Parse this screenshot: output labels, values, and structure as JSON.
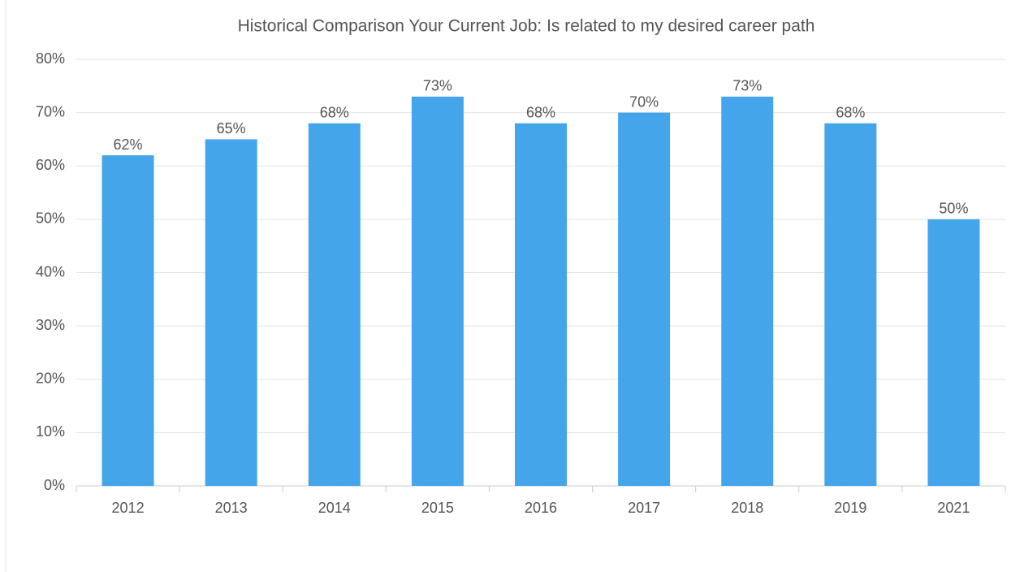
{
  "chart_data": {
    "type": "bar",
    "title": "Historical Comparison Your Current Job: Is related to my desired career path",
    "categories": [
      "2012",
      "2013",
      "2014",
      "2015",
      "2016",
      "2017",
      "2018",
      "2019",
      "2021"
    ],
    "values": [
      62,
      65,
      68,
      73,
      68,
      70,
      73,
      68,
      50
    ],
    "value_labels": [
      "62%",
      "65%",
      "68%",
      "73%",
      "68%",
      "70%",
      "73%",
      "68%",
      "50%"
    ],
    "color": "#45a5ea",
    "ylim": [
      0,
      80
    ],
    "yticks": [
      {
        "value": 0,
        "label": "0%"
      },
      {
        "value": 10,
        "label": "10%"
      },
      {
        "value": 20,
        "label": "20%"
      },
      {
        "value": 30,
        "label": "30%"
      },
      {
        "value": 40,
        "label": "40%"
      },
      {
        "value": 50,
        "label": "50%"
      },
      {
        "value": 60,
        "label": "60%"
      },
      {
        "value": 70,
        "label": "70%"
      },
      {
        "value": 80,
        "label": "80%"
      }
    ],
    "grid": true
  }
}
